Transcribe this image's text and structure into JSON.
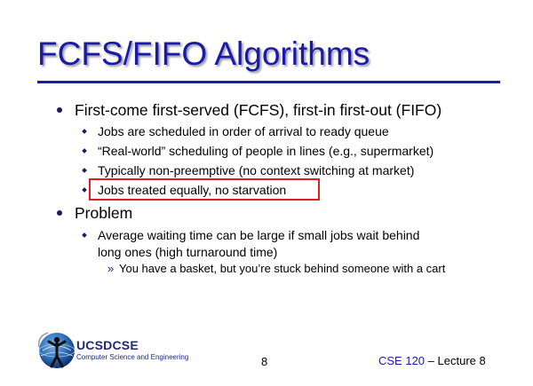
{
  "slide": {
    "title": "FCFS/FIFO Algorithms",
    "bullets": [
      {
        "text": "First-come first-served (FCFS), first-in first-out (FIFO)",
        "sub": [
          {
            "text": "Jobs are scheduled in order of arrival to ready queue"
          },
          {
            "text": "“Real-world” scheduling of people in lines (e.g., supermarket)"
          },
          {
            "text": "Typically non-preemptive (no context switching at market)"
          },
          {
            "text": "Jobs treated equally, no starvation",
            "highlighted": true
          }
        ]
      },
      {
        "text": "Problem",
        "sub": [
          {
            "text_line1": "Average waiting time can be large if small jobs wait behind",
            "text_line2": "long ones (high turnaround time)",
            "sub": [
              {
                "text": "You have a basket, but you’re stuck behind someone with a cart"
              }
            ]
          }
        ]
      }
    ]
  },
  "footer": {
    "logo_name": "UCSDCSE",
    "logo_subtitle": "Computer Science and Engineering",
    "page_number": "8",
    "course": "CSE 120",
    "lecture": "– Lecture 8"
  },
  "colors": {
    "title": "#1a1aa6",
    "rule": "#1a1ab4",
    "highlight": "#e11d1d"
  }
}
